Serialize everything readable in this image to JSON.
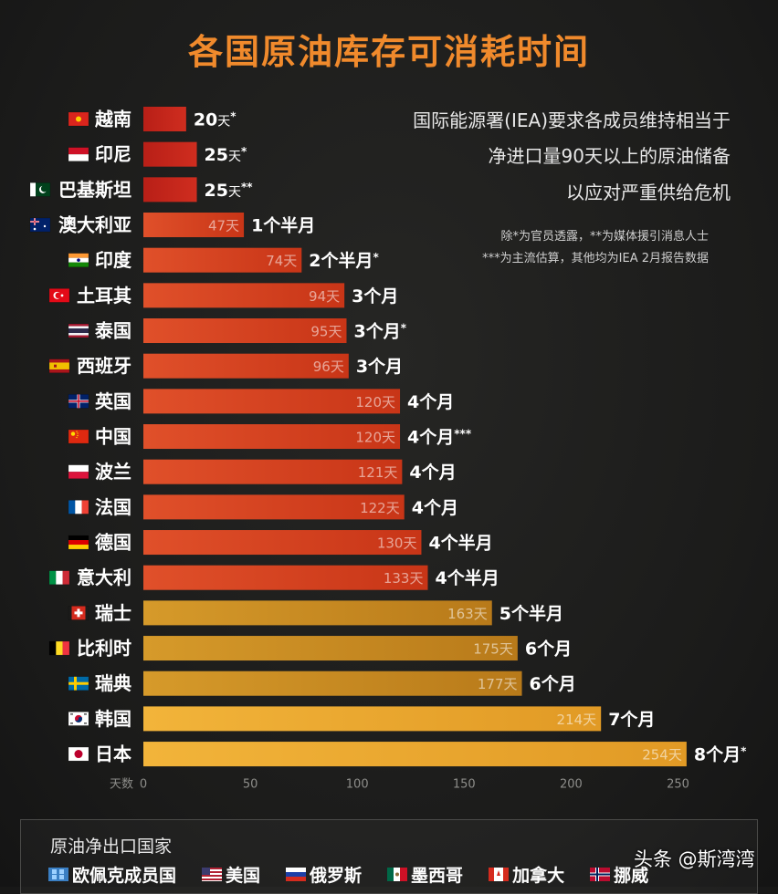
{
  "title": "各国原油库存可消耗时间",
  "notes": {
    "main": [
      "国际能源署(IEA)要求各成员维持相当于",
      "净进口量90天以上的原油储备",
      "以应对严重供给危机"
    ],
    "footnotes": [
      "除*为官员透露，**为媒体援引消息人士",
      "***为主流估算，其他均为IEA 2月报告数据"
    ]
  },
  "chart_data": {
    "type": "bar",
    "orientation": "horizontal",
    "xlabel": "天数",
    "xlim": [
      0,
      254
    ],
    "x_ticks": [
      "0",
      "50",
      "100",
      "150",
      "200",
      "250"
    ],
    "categories": [
      "越南",
      "印尼",
      "巴基斯坦",
      "澳大利亚",
      "印度",
      "土耳其",
      "泰国",
      "西班牙",
      "英国",
      "中国",
      "波兰",
      "法国",
      "德国",
      "意大利",
      "瑞士",
      "比利时",
      "瑞典",
      "韩国",
      "日本"
    ],
    "values": [
      20,
      25,
      25,
      47,
      74,
      94,
      95,
      96,
      120,
      120,
      121,
      122,
      130,
      133,
      163,
      175,
      177,
      214,
      254
    ],
    "inner_labels": [
      "",
      "",
      "",
      "47天",
      "74天",
      "94天",
      "95天",
      "96天",
      "120天",
      "120天",
      "121天",
      "122天",
      "130天",
      "133天",
      "163天",
      "175天",
      "177天",
      "214天",
      "254天"
    ],
    "outer_labels": [
      "20天*",
      "25天*",
      "25天**",
      "1个半月",
      "2个半月*",
      "3个月",
      "3个月*",
      "3个月",
      "4个月",
      "4个月***",
      "4个月",
      "4个月",
      "4个半月",
      "4个半月",
      "5个半月",
      "6个月",
      "6个月",
      "7个月",
      "8个月*"
    ],
    "flags": [
      "vn-flag-icon",
      "id-flag-icon",
      "pk-flag-icon",
      "au-flag-icon",
      "in-flag-icon",
      "tr-flag-icon",
      "th-flag-icon",
      "es-flag-icon",
      "gb-flag-icon",
      "cn-flag-icon",
      "pl-flag-icon",
      "fr-flag-icon",
      "de-flag-icon",
      "it-flag-icon",
      "ch-flag-icon",
      "be-flag-icon",
      "se-flag-icon",
      "kr-flag-icon",
      "jp-flag-icon"
    ],
    "colors": {
      "short": "#c0271c",
      "medium": "#d9441e",
      "long": "#c98a1e",
      "longest": "#e9a52b",
      "title": "#f08a2c"
    }
  },
  "legend": {
    "title": "原油净出口国家",
    "items": [
      {
        "label": "欧佩克成员国",
        "icon": "opec-icon"
      },
      {
        "label": "美国",
        "icon": "us-flag-icon"
      },
      {
        "label": "俄罗斯",
        "icon": "ru-flag-icon"
      },
      {
        "label": "墨西哥",
        "icon": "mx-flag-icon"
      },
      {
        "label": "加拿大",
        "icon": "ca-flag-icon"
      },
      {
        "label": "挪威",
        "icon": "no-flag-icon"
      }
    ]
  },
  "watermark": "头条 @斯湾湾"
}
